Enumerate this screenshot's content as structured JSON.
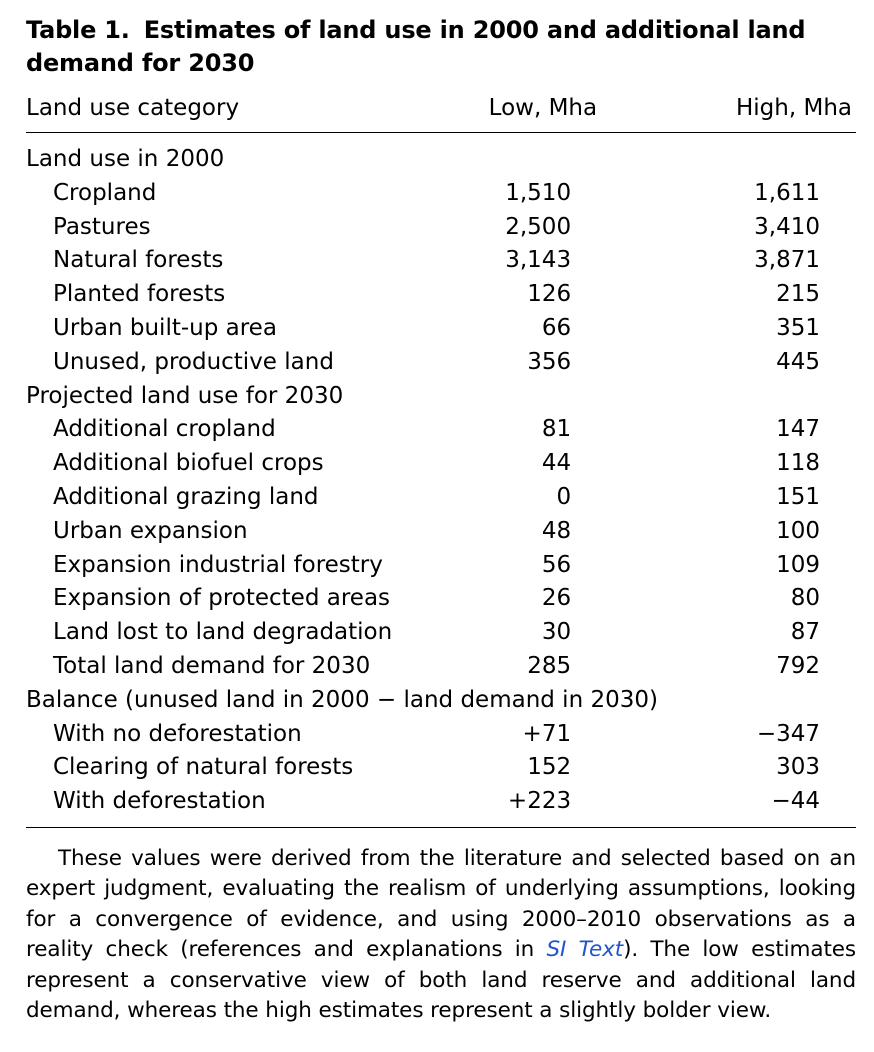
{
  "table": {
    "label": "Table 1.",
    "title": "Estimates of land use in 2000 and additional land demand for 2030",
    "headers": {
      "category": "Land use category",
      "low": "Low, Mha",
      "high": "High, Mha"
    },
    "rows": [
      {
        "type": "section",
        "label": "Land use in 2000",
        "low": "",
        "high": ""
      },
      {
        "type": "item",
        "label": "Cropland",
        "low": "1,510",
        "high": "1,611"
      },
      {
        "type": "item",
        "label": "Pastures",
        "low": "2,500",
        "high": "3,410"
      },
      {
        "type": "item",
        "label": "Natural forests",
        "low": "3,143",
        "high": "3,871"
      },
      {
        "type": "item",
        "label": "Planted forests",
        "low": "126",
        "high": "215"
      },
      {
        "type": "item",
        "label": "Urban built-up area",
        "low": "66",
        "high": "351"
      },
      {
        "type": "item",
        "label": "Unused, productive land",
        "low": "356",
        "high": "445"
      },
      {
        "type": "section",
        "label": "Projected land use for 2030",
        "low": "",
        "high": ""
      },
      {
        "type": "item",
        "label": "Additional cropland",
        "low": "81",
        "high": "147"
      },
      {
        "type": "item",
        "label": "Additional biofuel crops",
        "low": "44",
        "high": "118"
      },
      {
        "type": "item",
        "label": "Additional grazing land",
        "low": "0",
        "high": "151"
      },
      {
        "type": "item",
        "label": "Urban expansion",
        "low": "48",
        "high": "100"
      },
      {
        "type": "item",
        "label": "Expansion industrial forestry",
        "low": "56",
        "high": "109"
      },
      {
        "type": "item",
        "label": "Expansion of protected areas",
        "low": "26",
        "high": "80"
      },
      {
        "type": "item",
        "label": "Land lost to land degradation",
        "low": "30",
        "high": "87"
      },
      {
        "type": "item",
        "label": "Total land demand for 2030",
        "low": "285",
        "high": "792"
      },
      {
        "type": "section",
        "label": "Balance (unused land in 2000 − land demand in 2030)",
        "low": "",
        "high": ""
      },
      {
        "type": "item",
        "label": "With no deforestation",
        "low": "+71",
        "high": "−347"
      },
      {
        "type": "item",
        "label": "Clearing of natural forests",
        "low": "152",
        "high": "303"
      },
      {
        "type": "item",
        "label": "With deforestation",
        "low": "+223",
        "high": "−44"
      }
    ]
  },
  "footnote": {
    "text_before_link": "These values were derived from the literature and selected based on an expert judgment, evaluating the realism of underlying assumptions, looking for a convergence of evidence, and using 2000–2010 observations as a reality check (references and explanations in ",
    "link_text": "SI Text",
    "text_after_link": "). The low estimates represent a conservative view of both land reserve and additional land demand, whereas the high estimates represent a slightly bolder view.",
    "link_color": "#2255cc"
  }
}
